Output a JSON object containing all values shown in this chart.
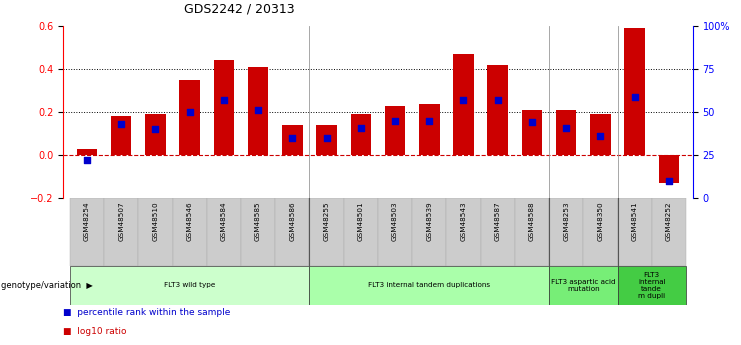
{
  "title": "GDS2242 / 20313",
  "samples": [
    "GSM48254",
    "GSM48507",
    "GSM48510",
    "GSM48546",
    "GSM48584",
    "GSM48585",
    "GSM48586",
    "GSM48255",
    "GSM48501",
    "GSM48503",
    "GSM48539",
    "GSM48543",
    "GSM48587",
    "GSM48588",
    "GSM48253",
    "GSM48350",
    "GSM48541",
    "GSM48252"
  ],
  "log10_ratio": [
    0.03,
    0.18,
    0.19,
    0.35,
    0.44,
    0.41,
    0.14,
    0.14,
    0.19,
    0.23,
    0.24,
    0.47,
    0.42,
    0.21,
    0.21,
    0.19,
    0.59,
    -0.13
  ],
  "percentile_rank": [
    0.22,
    0.43,
    0.4,
    0.5,
    0.57,
    0.51,
    0.35,
    0.35,
    0.41,
    0.45,
    0.45,
    0.57,
    0.57,
    0.44,
    0.41,
    0.36,
    0.59,
    0.1
  ],
  "ylim_left": [
    -0.2,
    0.6
  ],
  "ylim_right": [
    0.0,
    1.0
  ],
  "yticks_left": [
    -0.2,
    0.0,
    0.2,
    0.4,
    0.6
  ],
  "ytick_labels_right": [
    "0",
    "25",
    "50",
    "75",
    "100%"
  ],
  "bar_color": "#cc0000",
  "dot_color": "#0000cc",
  "groups": [
    {
      "label": "FLT3 wild type",
      "start": 0,
      "end": 7,
      "color": "#ccffcc"
    },
    {
      "label": "FLT3 internal tandem duplications",
      "start": 7,
      "end": 14,
      "color": "#aaffaa"
    },
    {
      "label": "FLT3 aspartic acid\nmutation",
      "start": 14,
      "end": 16,
      "color": "#77ee77"
    },
    {
      "label": "FLT3\ninternal\ntande\nm dupli",
      "start": 16,
      "end": 18,
      "color": "#44cc44"
    }
  ],
  "legend_items": [
    {
      "label": "log10 ratio",
      "color": "#cc0000"
    },
    {
      "label": "percentile rank within the sample",
      "color": "#0000cc"
    }
  ],
  "genotype_label": "genotype/variation"
}
